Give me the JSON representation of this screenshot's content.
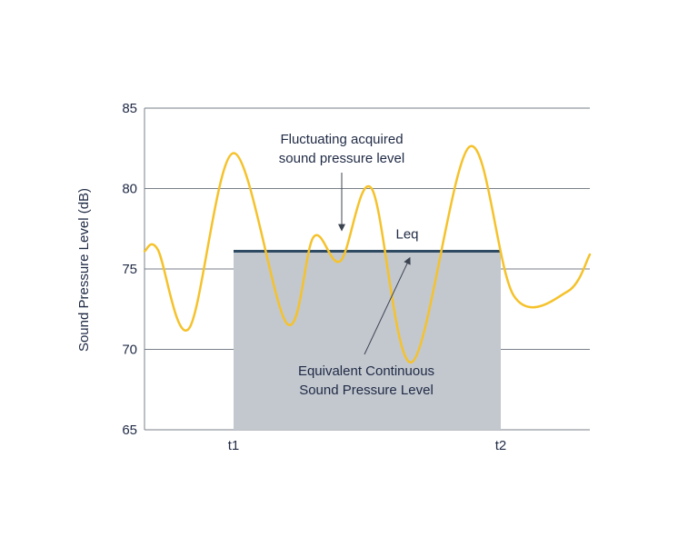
{
  "chart_data": {
    "type": "line",
    "ylabel": "Sound Pressure Level (dB)",
    "ylim": [
      65,
      85
    ],
    "yticks": [
      "65",
      "70",
      "75",
      "80",
      "85"
    ],
    "grid": true,
    "x_markers": [
      {
        "label": "t1",
        "x": 0.2
      },
      {
        "label": "t2",
        "x": 0.8
      }
    ],
    "series": [
      {
        "color": "#f5c22b",
        "x": [
          0,
          0.03,
          0.1,
          0.2,
          0.32,
          0.38,
          0.44,
          0.51,
          0.6,
          0.73,
          0.83,
          0.95,
          1.0
        ],
        "y": [
          76.1,
          76.2,
          71.3,
          82.2,
          71.6,
          77.0,
          75.5,
          80.0,
          69.2,
          82.6,
          73.3,
          73.6,
          75.9
        ]
      }
    ],
    "leq": {
      "label": "Leq",
      "value": 76.1,
      "x_start": 0.2,
      "x_end": 0.8,
      "fill_color": "#c3c8cf",
      "line_color": "#2e4a62"
    },
    "annotations": [
      {
        "lines": [
          "Fluctuating acquired",
          "sound pressure level"
        ],
        "points_to": {
          "x": 0.44,
          "y": 77.0
        }
      },
      {
        "lines": [
          "Equivalent Continuous",
          "Sound Pressure Level"
        ],
        "points_to": {
          "x": 0.595,
          "y": 76.1
        }
      }
    ]
  }
}
